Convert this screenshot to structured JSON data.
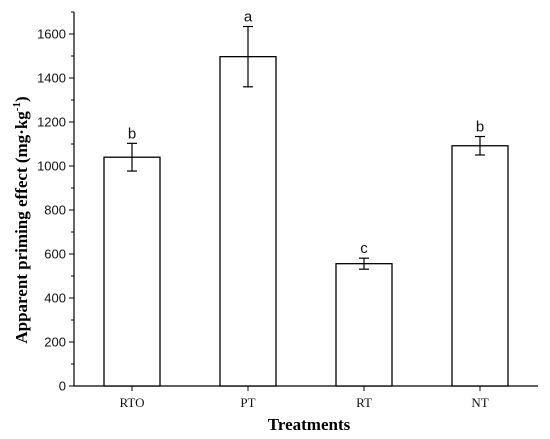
{
  "chart_data": {
    "type": "bar",
    "title": "",
    "xlabel": "Treatments",
    "ylabel": {
      "text": "Apparent priming effect (mg·kg",
      "sup": "-1",
      "close": ")"
    },
    "categories": [
      "RTO",
      "PT",
      "RT",
      "NT"
    ],
    "values": [
      1040,
      1497,
      556,
      1092
    ],
    "errors": [
      63,
      137,
      25,
      42
    ],
    "significance": [
      "b",
      "a",
      "c",
      "b"
    ],
    "ylim": [
      0,
      1700
    ],
    "yticks": [
      0,
      200,
      400,
      600,
      800,
      1000,
      1200,
      1400,
      1600
    ],
    "grid": false,
    "legend": "none",
    "bar_fill": "#ffffff",
    "bar_stroke": "#000000"
  }
}
